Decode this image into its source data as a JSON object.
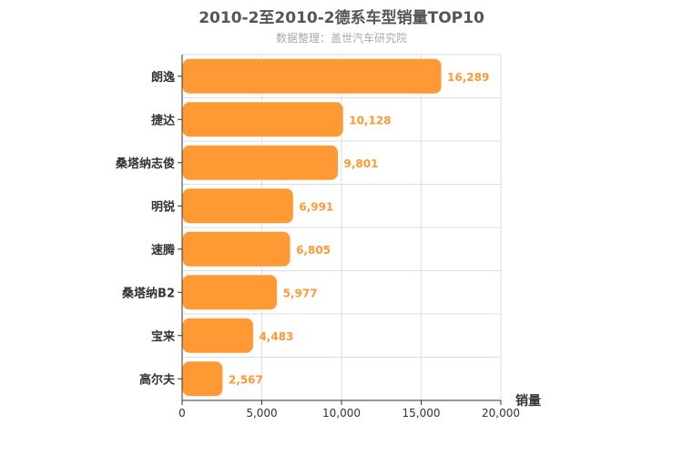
{
  "chart_data": {
    "type": "bar",
    "orientation": "horizontal",
    "title": "2010-2至2010-2德系车型销量TOP10",
    "subtitle": "数据整理：盖世汽车研究院",
    "categories": [
      "朗逸",
      "捷达",
      "桑塔纳志俊",
      "明锐",
      "速腾",
      "桑塔纳B2",
      "宝来",
      "高尔夫"
    ],
    "values": [
      16289,
      10128,
      9801,
      6991,
      6805,
      5977,
      4483,
      2567
    ],
    "value_labels": [
      "16,289",
      "10,128",
      "9,801",
      "6,991",
      "6,805",
      "5,977",
      "4,483",
      "2,567"
    ],
    "xlabel": "销量",
    "ylabel": "",
    "xlim": [
      0,
      20000
    ],
    "xticks": [
      0,
      5000,
      10000,
      15000,
      20000
    ],
    "xtick_labels": [
      "0",
      "5,000",
      "10,000",
      "15,000",
      "20,000"
    ],
    "grid": true,
    "colors": {
      "bar": "#FF9933",
      "bar_edge": "#FFFFFF",
      "value_label": "#FF9933",
      "grid": "#DDDDDD",
      "axis": "#333333"
    }
  }
}
